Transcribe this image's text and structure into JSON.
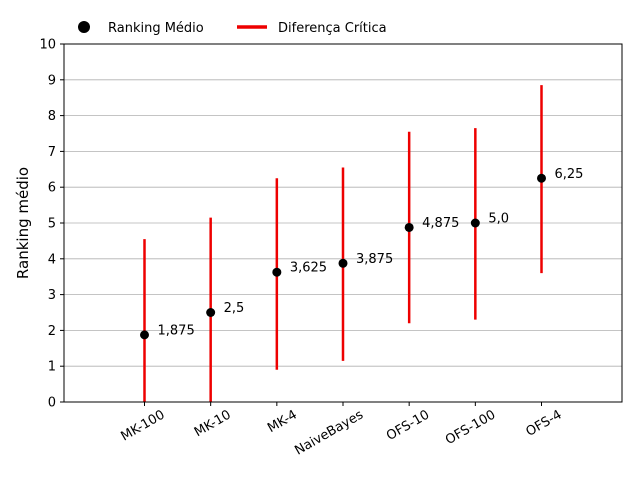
{
  "chart_data": {
    "type": "scatter",
    "title": "",
    "xlabel": "",
    "ylabel": "Ranking médio",
    "ylim": [
      0,
      10
    ],
    "yticks": [
      0,
      1,
      2,
      3,
      4,
      5,
      6,
      7,
      8,
      9,
      10
    ],
    "grid": "horizontal",
    "legend_position": "top-left",
    "categories": [
      "MK-100",
      "MK-10",
      "MK-4",
      "NaiveBayes",
      "OFS-10",
      "OFS-100",
      "OFS-4"
    ],
    "series": [
      {
        "name": "Ranking Médio",
        "marker": "circle",
        "color": "#000000",
        "values": [
          1.875,
          2.5,
          3.625,
          3.875,
          4.875,
          5.0,
          6.25
        ],
        "value_labels": [
          "1,875",
          "2,5",
          "3,625",
          "3,875",
          "4,875",
          "5,0",
          "6,25"
        ]
      },
      {
        "name": "Diferença Crítica",
        "marker": "line",
        "color": "#ee0000",
        "intervals": [
          [
            -0.8,
            4.55
          ],
          [
            -0.15,
            5.15
          ],
          [
            0.9,
            6.25
          ],
          [
            1.15,
            6.55
          ],
          [
            2.2,
            7.55
          ],
          [
            2.3,
            7.65
          ],
          [
            3.6,
            8.85
          ]
        ]
      }
    ]
  }
}
